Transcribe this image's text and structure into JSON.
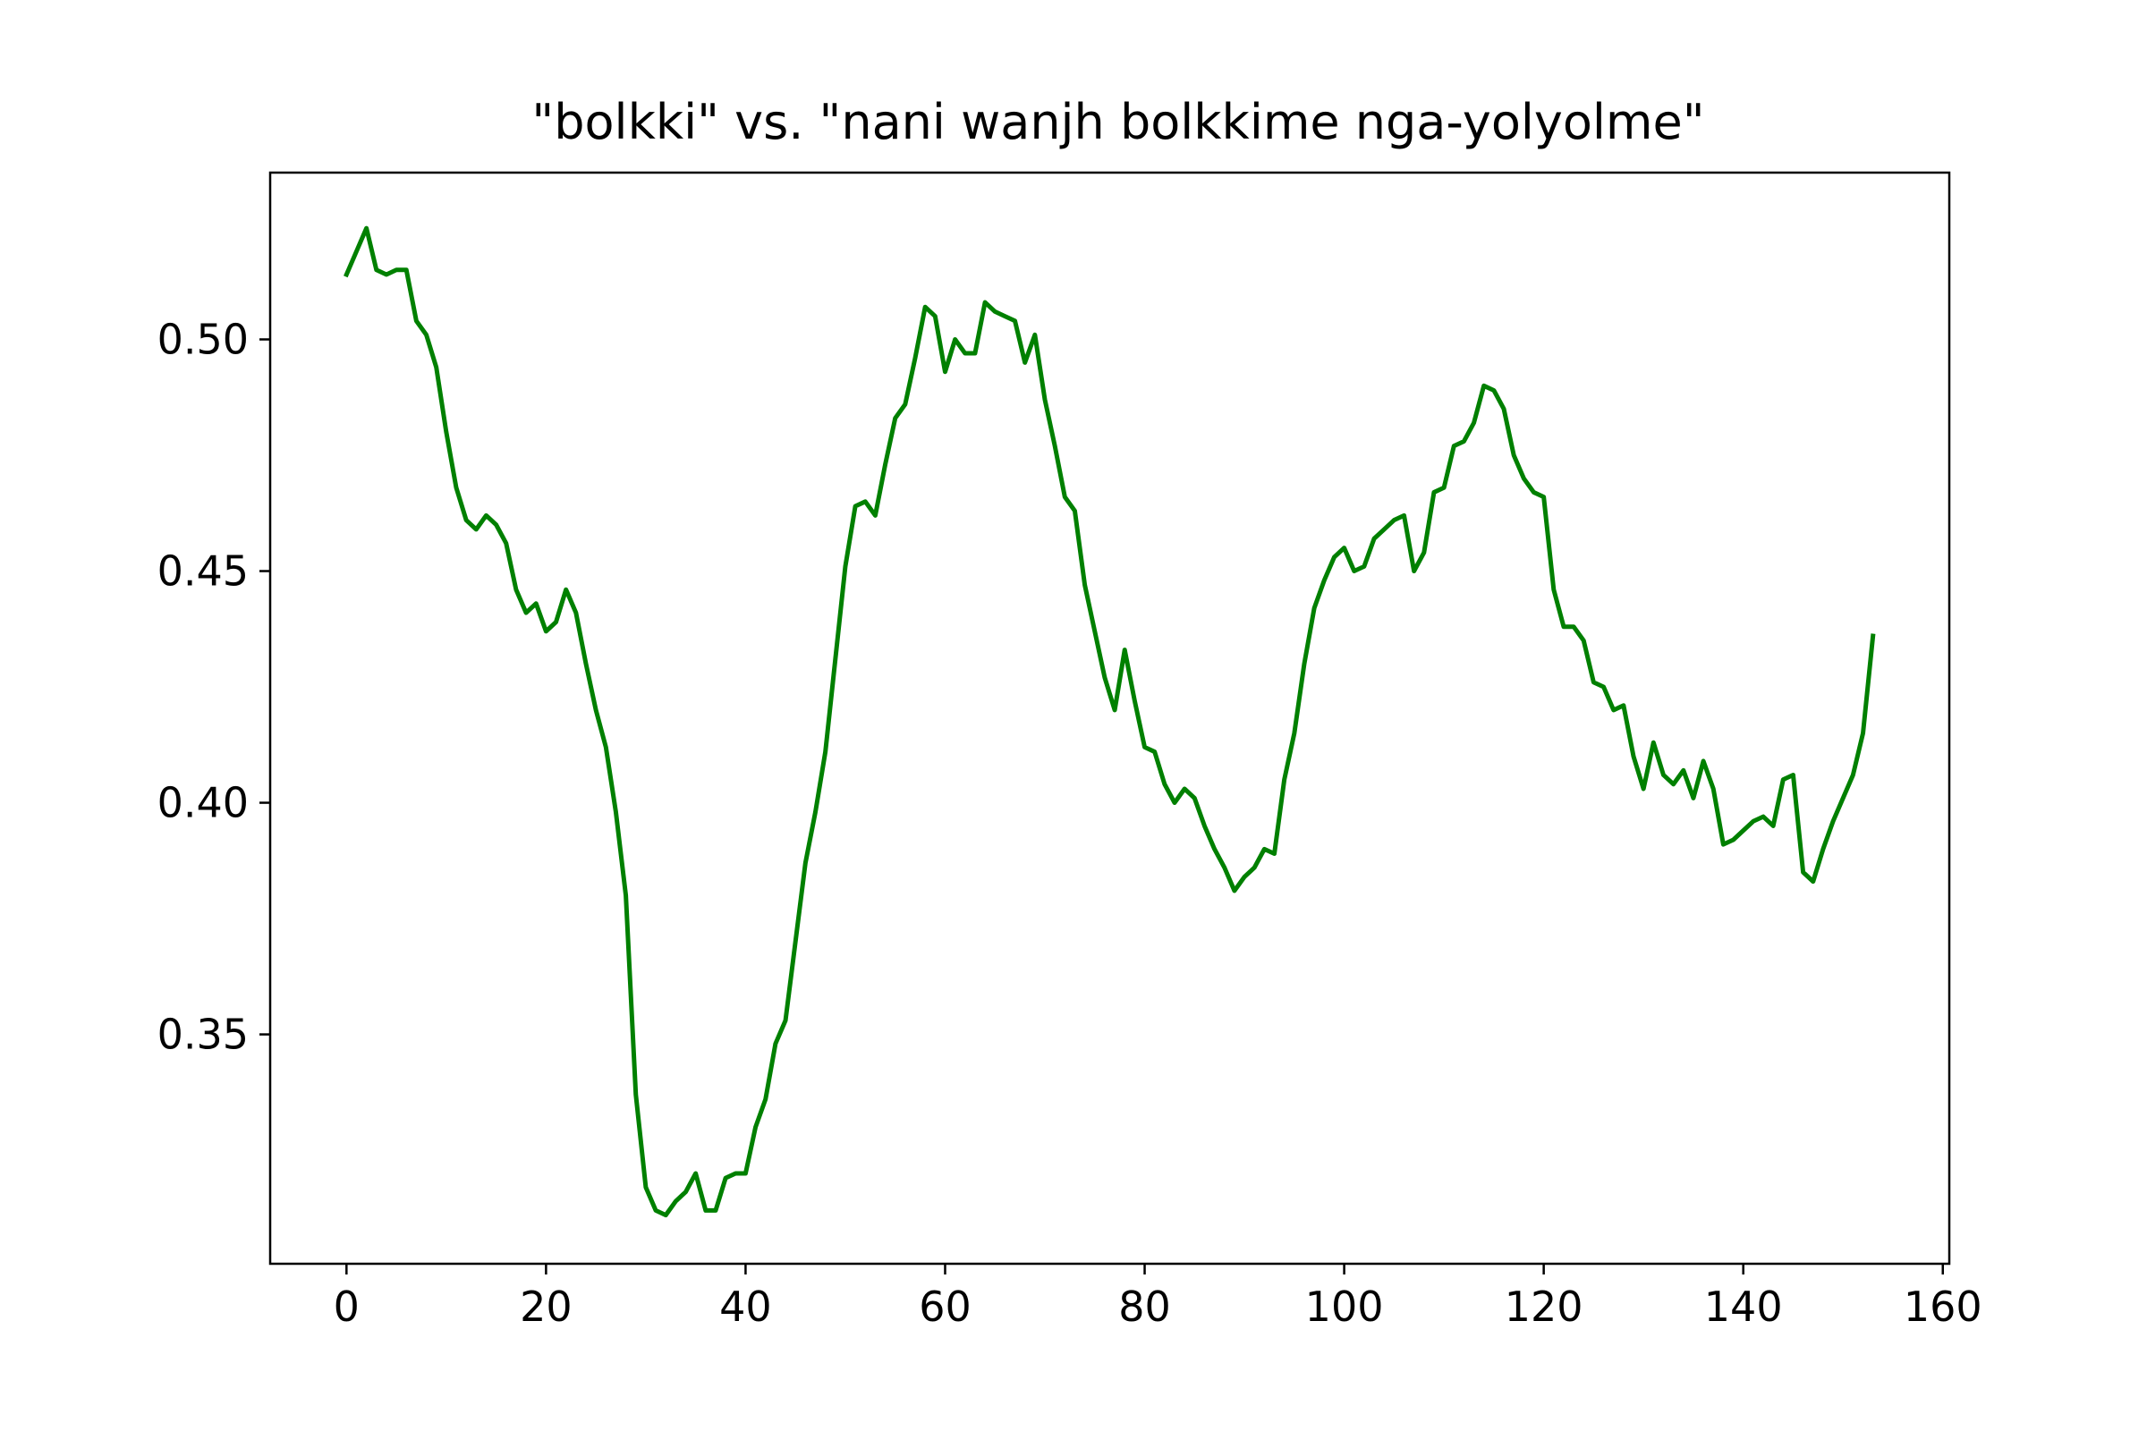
{
  "chart_data": {
    "type": "line",
    "title": "\"bolkki\" vs. \"nani wanjh bolkkime nga-yolyolme\"",
    "xlabel": "",
    "ylabel": "",
    "xlim": [
      -7.65,
      160.65
    ],
    "ylim": [
      0.3005,
      0.536
    ],
    "xticks": [
      0,
      20,
      40,
      60,
      80,
      100,
      120,
      140,
      160
    ],
    "xtick_labels": [
      "0",
      "20",
      "40",
      "60",
      "80",
      "100",
      "120",
      "140",
      "160"
    ],
    "yticks": [
      0.35,
      0.4,
      0.45,
      0.5
    ],
    "ytick_labels": [
      "0.35",
      "0.40",
      "0.45",
      "0.50"
    ],
    "grid": false,
    "legend": "none",
    "series": [
      {
        "color": "#008000",
        "x": [
          0,
          1,
          2,
          3,
          4,
          5,
          6,
          7,
          8,
          9,
          10,
          11,
          12,
          13,
          14,
          15,
          16,
          17,
          18,
          19,
          20,
          21,
          22,
          23,
          24,
          25,
          26,
          27,
          28,
          29,
          30,
          31,
          32,
          33,
          34,
          35,
          36,
          37,
          38,
          39,
          40,
          41,
          42,
          43,
          44,
          45,
          46,
          47,
          48,
          49,
          50,
          51,
          52,
          53,
          54,
          55,
          56,
          57,
          58,
          59,
          60,
          61,
          62,
          63,
          64,
          65,
          66,
          67,
          68,
          69,
          70,
          71,
          72,
          73,
          74,
          75,
          76,
          77,
          78,
          79,
          80,
          81,
          82,
          83,
          84,
          85,
          86,
          87,
          88,
          89,
          90,
          91,
          92,
          93,
          94,
          95,
          96,
          97,
          98,
          99,
          100,
          101,
          102,
          103,
          104,
          105,
          106,
          107,
          108,
          109,
          110,
          111,
          112,
          113,
          114,
          115,
          116,
          117,
          118,
          119,
          120,
          121,
          122,
          123,
          124,
          125,
          126,
          127,
          128,
          129,
          130,
          131,
          132,
          133,
          134,
          135,
          136,
          137,
          138,
          139,
          140,
          141,
          142,
          143,
          144,
          145,
          146,
          147,
          148,
          149,
          150,
          151,
          152,
          153
        ],
        "y": [
          0.514,
          0.519,
          0.524,
          0.515,
          0.514,
          0.515,
          0.515,
          0.504,
          0.501,
          0.494,
          0.48,
          0.468,
          0.461,
          0.459,
          0.462,
          0.46,
          0.456,
          0.446,
          0.441,
          0.443,
          0.437,
          0.439,
          0.446,
          0.441,
          0.43,
          0.42,
          0.412,
          0.398,
          0.38,
          0.337,
          0.317,
          0.312,
          0.311,
          0.314,
          0.316,
          0.32,
          0.312,
          0.312,
          0.319,
          0.32,
          0.32,
          0.33,
          0.336,
          0.348,
          0.353,
          0.37,
          0.387,
          0.398,
          0.411,
          0.431,
          0.451,
          0.464,
          0.465,
          0.462,
          0.473,
          0.483,
          0.486,
          0.496,
          0.507,
          0.505,
          0.493,
          0.5,
          0.497,
          0.497,
          0.508,
          0.506,
          0.505,
          0.504,
          0.495,
          0.501,
          0.487,
          0.477,
          0.466,
          0.463,
          0.447,
          0.437,
          0.427,
          0.42,
          0.433,
          0.422,
          0.412,
          0.411,
          0.404,
          0.4,
          0.403,
          0.401,
          0.395,
          0.39,
          0.386,
          0.381,
          0.384,
          0.386,
          0.39,
          0.389,
          0.405,
          0.415,
          0.43,
          0.442,
          0.448,
          0.453,
          0.455,
          0.45,
          0.451,
          0.457,
          0.459,
          0.461,
          0.462,
          0.45,
          0.454,
          0.467,
          0.468,
          0.477,
          0.478,
          0.482,
          0.49,
          0.489,
          0.485,
          0.475,
          0.47,
          0.467,
          0.466,
          0.446,
          0.438,
          0.438,
          0.435,
          0.426,
          0.425,
          0.42,
          0.421,
          0.41,
          0.403,
          0.413,
          0.406,
          0.404,
          0.407,
          0.401,
          0.409,
          0.403,
          0.391,
          0.392,
          0.394,
          0.396,
          0.397,
          0.395,
          0.405,
          0.406,
          0.385,
          0.383,
          0.39,
          0.396,
          0.401,
          0.406,
          0.415,
          0.436
        ]
      }
    ]
  }
}
